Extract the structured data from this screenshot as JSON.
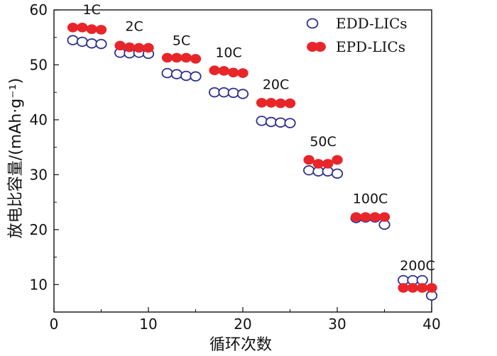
{
  "chart_data": {
    "type": "scatter",
    "title": "",
    "xlabel": "循环次数",
    "ylabel": "放电比容量/(mAh·g⁻¹)",
    "xlim": [
      0,
      40
    ],
    "ylim": [
      5,
      60
    ],
    "xticks": [
      0,
      10,
      20,
      30,
      40
    ],
    "yticks": [
      10,
      20,
      30,
      40,
      50,
      60
    ],
    "grid": false,
    "legend_position": "top-right",
    "colors": {
      "edd": "#2b2f8f",
      "epd": "#e8262a"
    },
    "rate_labels": [
      {
        "text": "1C",
        "x": 4,
        "y": 59.2
      },
      {
        "text": "2C",
        "x": 8.5,
        "y": 56.2
      },
      {
        "text": "5C",
        "x": 13.5,
        "y": 53.6
      },
      {
        "text": "10C",
        "x": 18.5,
        "y": 51.4
      },
      {
        "text": "20C",
        "x": 23.5,
        "y": 45.6
      },
      {
        "text": "50C",
        "x": 28.5,
        "y": 35.2
      },
      {
        "text": "100C",
        "x": 33.5,
        "y": 24.8
      },
      {
        "text": "200C",
        "x": 38.5,
        "y": 12.6
      }
    ],
    "series": [
      {
        "name": "EDD-LICs",
        "marker": "open-circle",
        "x": [
          2,
          3,
          4,
          5,
          7,
          8,
          9,
          10,
          12,
          13,
          14,
          15,
          17,
          18,
          19,
          20,
          22,
          23,
          24,
          25,
          27,
          28,
          29,
          30,
          32,
          33,
          34,
          35,
          37,
          38,
          39,
          40
        ],
        "y": [
          54.5,
          54.2,
          53.9,
          53.8,
          52.2,
          52.1,
          52.2,
          52.0,
          48.5,
          48.3,
          48.0,
          47.9,
          45.0,
          45.0,
          44.9,
          44.7,
          39.8,
          39.6,
          39.5,
          39.4,
          30.8,
          30.6,
          30.6,
          30.2,
          22.1,
          22.2,
          22.2,
          20.9,
          10.8,
          10.8,
          10.8,
          8.0
        ]
      },
      {
        "name": "EPD-LICs",
        "marker": "filled-circle",
        "x": [
          2,
          3,
          4,
          5,
          7,
          8,
          9,
          10,
          12,
          13,
          14,
          15,
          17,
          18,
          19,
          20,
          22,
          23,
          24,
          25,
          27,
          28,
          29,
          30,
          32,
          33,
          34,
          35,
          37,
          38,
          39,
          40
        ],
        "y": [
          56.8,
          56.8,
          56.5,
          56.4,
          53.5,
          53.2,
          53.1,
          53.1,
          51.3,
          51.3,
          51.3,
          51.1,
          49.0,
          48.9,
          48.6,
          48.5,
          43.1,
          43.1,
          43.0,
          43.0,
          32.7,
          32.0,
          32.0,
          32.7,
          22.3,
          22.3,
          22.3,
          22.3,
          9.4,
          9.4,
          9.4,
          9.4
        ]
      }
    ]
  }
}
